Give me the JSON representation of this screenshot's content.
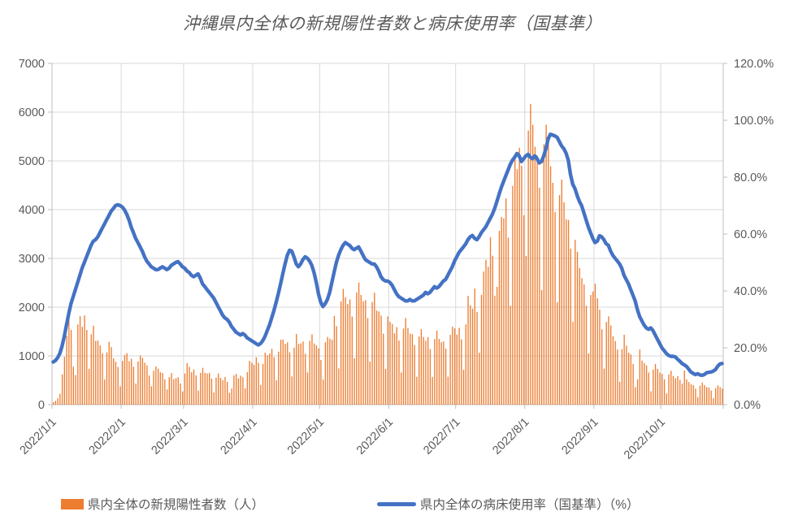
{
  "title": "沖縄県内全体の新規陽性者数と病床使用率（国基準）",
  "legend": [
    {
      "label": "県内全体の新規陽性者数（人）",
      "marker": "bar",
      "color": "#ED7D31"
    },
    {
      "label": "県内全体の病床使用率（国基準）（%）",
      "marker": "line",
      "color": "#4472C4"
    }
  ],
  "chart_data": {
    "type": "combo",
    "title": "沖縄県内全体の新規陽性者数と病床使用率（国基準）",
    "x": {
      "start": "2022/1/1",
      "end": "2022/10/28",
      "days": 301,
      "ticks": [
        {
          "label": "2022/1/1",
          "day": 0
        },
        {
          "label": "2022/2/1",
          "day": 31
        },
        {
          "label": "2022/3/1",
          "day": 59
        },
        {
          "label": "2022/4/1",
          "day": 90
        },
        {
          "label": "2022/5/1",
          "day": 120
        },
        {
          "label": "2022/6/1",
          "day": 151
        },
        {
          "label": "2022/7/1",
          "day": 181
        },
        {
          "label": "2022/8/1",
          "day": 212
        },
        {
          "label": "2022/9/1",
          "day": 243
        },
        {
          "label": "2022/10/1",
          "day": 273
        }
      ]
    },
    "left_axis": {
      "min": 0,
      "max": 7000,
      "step": 1000,
      "labels": [
        "0",
        "1000",
        "2000",
        "3000",
        "4000",
        "5000",
        "6000",
        "7000"
      ]
    },
    "right_axis": {
      "min": 0,
      "max": 120,
      "step": 20,
      "labels": [
        "0.0%",
        "20.0%",
        "40.0%",
        "60.0%",
        "80.0%",
        "100.0%",
        "120.0%"
      ]
    },
    "grid_color": "#D9D9D9",
    "axis_color": "#BFBFBF",
    "series": [
      {
        "name": "県内全体の新規陽性者数（人）",
        "type": "bar",
        "axis": "left",
        "color": "#ED7D31",
        "values": [
          52,
          80,
          130,
          225,
          623,
          981,
          1414,
          1759,
          1533,
          779,
          608,
          1644,
          1817,
          1596,
          1829,
          1533,
          735,
          1443,
          1621,
          1309,
          1313,
          1213,
          1056,
          515,
          1073,
          1290,
          1183,
          951,
          879,
          772,
          375,
          898,
          1020,
          1056,
          891,
          940,
          780,
          434,
          886,
          1010,
          959,
          860,
          805,
          598,
          376,
          697,
          783,
          742,
          668,
          650,
          520,
          313,
          565,
          648,
          522,
          545,
          561,
          436,
          273,
          640,
          854,
          776,
          665,
          724,
          601,
          290,
          652,
          756,
          653,
          641,
          652,
          534,
          251,
          556,
          639,
          550,
          501,
          565,
          467,
          242,
          332,
          603,
          631,
          540,
          593,
          563,
          337,
          668,
          900,
          860,
          816,
          973,
          860,
          403,
          834,
          1067,
          1013,
          1052,
          1145,
          976,
          500,
          1086,
          1331,
          1335,
          1247,
          1277,
          1072,
          581,
          1170,
          1451,
          1243,
          1258,
          1296,
          1045,
          660,
          1310,
          1441,
          1255,
          1216,
          1155,
          915,
          515,
          1280,
          1389,
          1353,
          1332,
          1822,
          1610,
          746,
          2119,
          2375,
          2200,
          2065,
          2158,
          1806,
          949,
          2302,
          2505,
          2252,
          2121,
          2144,
          1776,
          885,
          2105,
          2296,
          1929,
          1913,
          1827,
          1457,
          735,
          1809,
          1700,
          1655,
          1463,
          1591,
          1314,
          661,
          1561,
          1777,
          1576,
          1457,
          1446,
          1224,
          574,
          1398,
          1550,
          1390,
          1311,
          1386,
          1141,
          568,
          1344,
          1520,
          1347,
          1284,
          1296,
          1148,
          576,
          1433,
          1600,
          1567,
          1437,
          1576,
          1339,
          717,
          1646,
          2230,
          2037,
          1969,
          2380,
          1901,
          1064,
          2253,
          2731,
          2973,
          2827,
          3437,
          3055,
          2235,
          2417,
          3566,
          3850,
          3822,
          4229,
          3425,
          2030,
          4486,
          5114,
          4829,
          5268,
          4900,
          3886,
          3050,
          5622,
          6170,
          5740,
          5290,
          5110,
          4450,
          2350,
          5340,
          5744,
          5480,
          4890,
          4550,
          3950,
          2100,
          4300,
          4616,
          4150,
          3800,
          3790,
          3200,
          1700,
          3380,
          3135,
          2800,
          2595,
          2465,
          2030,
          1050,
          2250,
          2320,
          2481,
          2181,
          1950,
          1546,
          740,
          1696,
          1812,
          1628,
          1405,
          1305,
          1130,
          470,
          1140,
          1435,
          1210,
          1065,
          1030,
          835,
          360,
          520,
          1130,
          905,
          855,
          805,
          660,
          275,
          720,
          835,
          735,
          660,
          630,
          520,
          230,
          620,
          695,
          590,
          542,
          585,
          510,
          430,
          700,
          520,
          465,
          420,
          400,
          330,
          155,
          390,
          455,
          400,
          360,
          350,
          290,
          135,
          340,
          395,
          360,
          330
        ]
      },
      {
        "name": "県内全体の病床使用率（国基準）（%）",
        "type": "line",
        "axis": "right",
        "color": "#4472C4",
        "values": [
          15,
          15.5,
          16.5,
          18,
          20.5,
          24,
          28,
          32,
          35.5,
          38,
          40.5,
          43,
          45.5,
          48,
          50,
          52,
          54,
          56,
          57.5,
          58,
          59,
          60.5,
          62,
          63.5,
          65,
          66.5,
          68,
          69,
          70,
          70.3,
          70,
          69.5,
          68.5,
          67,
          65,
          62.5,
          60.5,
          58.5,
          57,
          55.5,
          54,
          52,
          50.5,
          49.5,
          48.5,
          48,
          47.5,
          47.5,
          48,
          48.5,
          48,
          47.5,
          48,
          49,
          49.5,
          50,
          50.3,
          49.5,
          48.5,
          48,
          47,
          46.5,
          45.5,
          45,
          45.5,
          46,
          44.5,
          42.5,
          41.5,
          40.5,
          39.5,
          38.5,
          37.5,
          36,
          34.5,
          33,
          31.5,
          30.5,
          30,
          29,
          27.5,
          26.5,
          25.5,
          25,
          24.5,
          25,
          24.5,
          23.5,
          23,
          22.5,
          22,
          21.5,
          21,
          21.5,
          22.5,
          24,
          26,
          28,
          30.5,
          33,
          36,
          39,
          42.5,
          46,
          49.5,
          52.5,
          54.3,
          54,
          52,
          49.5,
          48.5,
          49.5,
          51,
          52,
          51.5,
          50.5,
          49,
          46.5,
          43,
          39,
          36,
          34.5,
          35.5,
          37,
          39.5,
          43,
          46.5,
          50,
          52.5,
          54.5,
          56,
          57,
          56.5,
          56,
          55,
          54.5,
          55,
          55.5,
          54,
          52.5,
          51,
          50.5,
          50,
          49.5,
          49.5,
          48.5,
          47,
          45,
          44,
          43.5,
          43.5,
          43,
          42,
          40.5,
          39,
          38,
          37.5,
          37,
          36.5,
          36.5,
          37,
          36.5,
          36.5,
          37,
          37.5,
          38,
          38.5,
          39.5,
          39,
          39.5,
          40.5,
          41.5,
          41,
          41.5,
          42.5,
          43.5,
          44,
          45.5,
          47,
          48.5,
          50.5,
          52,
          53.5,
          54.5,
          55.5,
          56.5,
          58,
          59,
          59.5,
          58.5,
          58,
          59,
          60.5,
          61.5,
          62.5,
          64,
          65.5,
          67,
          69,
          71.5,
          74,
          76.5,
          78.5,
          80.5,
          82.5,
          84.5,
          86,
          87,
          88.3,
          87.5,
          85.5,
          86.5,
          87.5,
          88,
          87,
          86.5,
          87.5,
          86.5,
          85,
          85.5,
          87.5,
          90,
          93.5,
          95.1,
          94.8,
          94.5,
          94,
          92.5,
          91,
          90,
          88.5,
          86,
          81,
          77.5,
          76,
          73.5,
          71.5,
          70,
          67.5,
          65,
          62.5,
          60.5,
          58.5,
          57,
          57.5,
          59.4,
          59,
          58,
          56.6,
          56,
          54,
          52.5,
          51.5,
          50.5,
          49.5,
          48,
          45.5,
          44,
          42.5,
          40.5,
          38.5,
          36.5,
          33.5,
          31,
          29.5,
          28,
          27,
          26.5,
          27,
          26,
          24.5,
          23,
          21.5,
          20,
          19,
          18,
          17.3,
          17,
          17,
          16.8,
          16,
          15.3,
          14.5,
          14,
          13.5,
          12.5,
          11.5,
          11,
          10.6,
          10.9,
          10.5,
          10.3,
          10.6,
          11.2,
          11.4,
          11.5,
          11.8,
          12.3,
          13.5,
          14.3,
          14.5
        ]
      }
    ]
  }
}
